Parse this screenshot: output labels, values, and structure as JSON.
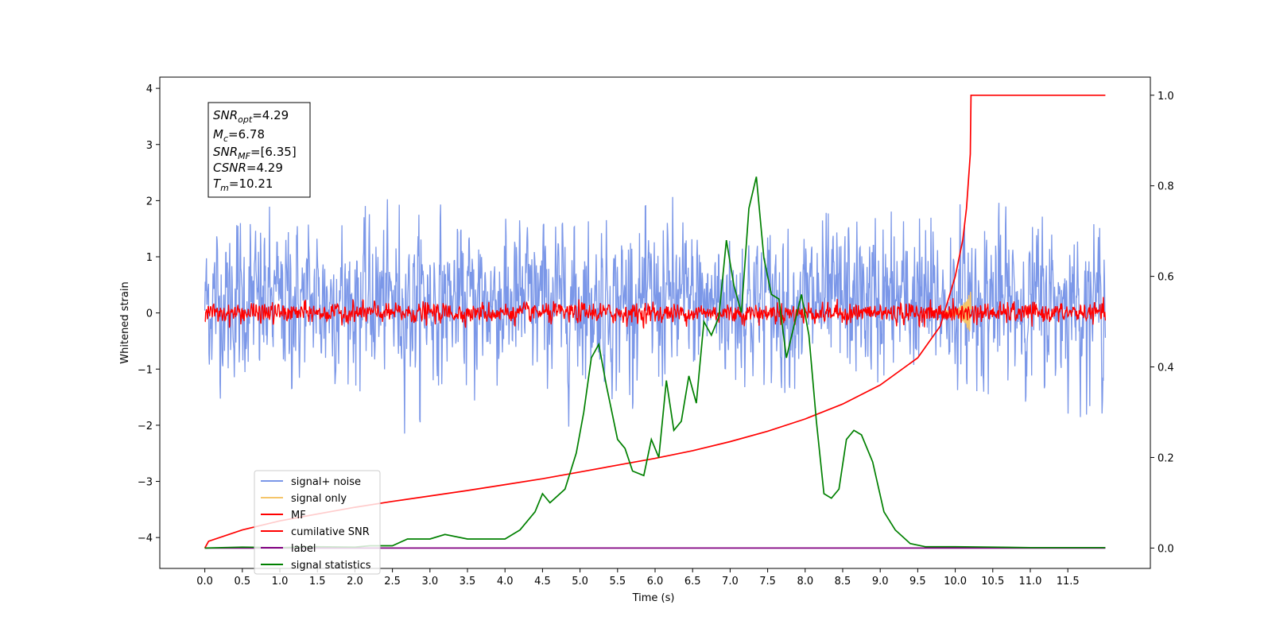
{
  "chart_data": {
    "type": "line",
    "xlabel": "Time (s)",
    "ylabel": "Whitened strain",
    "xlim": [
      -0.6,
      12.6
    ],
    "ylim": [
      -4.55,
      4.2
    ],
    "y2lim": [
      -0.045,
      1.04
    ],
    "x_ticks": [
      "0.0",
      "0.5",
      "1.0",
      "1.5",
      "2.0",
      "2.5",
      "3.0",
      "3.5",
      "4.0",
      "4.5",
      "5.0",
      "5.5",
      "6.0",
      "6.5",
      "7.0",
      "7.5",
      "8.0",
      "8.5",
      "9.0",
      "9.5",
      "10.0",
      "10.5",
      "11.0",
      "11.5"
    ],
    "y_ticks": [
      "4",
      "3",
      "2",
      "1",
      "0",
      "−1",
      "−2",
      "−3",
      "−4"
    ],
    "y2_ticks": [
      "1.0",
      "0.8",
      "0.6",
      "0.4",
      "0.2",
      "0.0"
    ],
    "stats": {
      "snr_opt": {
        "main": "SNR",
        "sub": "opt",
        "value": "=4.29"
      },
      "mc": {
        "main": "M",
        "sub": "c",
        "value": "=6.78"
      },
      "snr_mf": {
        "main": "SNR",
        "sub": "MF",
        "value": "=[6.35]"
      },
      "csnr": {
        "main": "CSNR",
        "sub": "",
        "value": "=4.29"
      },
      "tm": {
        "main": "T",
        "sub": "m",
        "value": "=10.21"
      }
    },
    "series": [
      {
        "name": "signal+ noise",
        "color": "#7b97e8",
        "axis": "left",
        "kind": "noise",
        "mean": 0.2,
        "std": 0.92,
        "x_range": [
          0.0,
          12.0
        ]
      },
      {
        "name": "signal only",
        "color": "#f5c56a",
        "axis": "left",
        "kind": "chirp",
        "merger_time": 10.21
      },
      {
        "name": "MF",
        "color": "#ff0000",
        "axis": "left",
        "kind": "noise",
        "mean": 0.0,
        "std": 0.12,
        "x_range": [
          0.0,
          12.0
        ]
      },
      {
        "name": "cumilative SNR",
        "color": "#ff0000",
        "axis": "right",
        "x": [
          0.0,
          0.05,
          0.5,
          1.0,
          1.5,
          2.0,
          2.5,
          3.0,
          3.5,
          4.0,
          4.5,
          5.0,
          5.5,
          6.0,
          6.5,
          7.0,
          7.5,
          8.0,
          8.5,
          9.0,
          9.5,
          9.8,
          10.0,
          10.1,
          10.15,
          10.2,
          10.21,
          11.0,
          11.5,
          12.0
        ],
        "y": [
          0.0,
          0.015,
          0.04,
          0.06,
          0.075,
          0.09,
          0.103,
          0.115,
          0.127,
          0.14,
          0.153,
          0.168,
          0.183,
          0.198,
          0.215,
          0.235,
          0.258,
          0.285,
          0.318,
          0.36,
          0.42,
          0.49,
          0.6,
          0.68,
          0.75,
          0.87,
          1.0,
          1.0,
          1.0,
          1.0
        ]
      },
      {
        "name": "label",
        "color": "#800080",
        "axis": "right",
        "x": [
          0.0,
          12.0
        ],
        "y": [
          0.0,
          0.0
        ]
      },
      {
        "name": "signal statistics",
        "color": "#008000",
        "axis": "right",
        "x": [
          0.0,
          0.5,
          1.0,
          1.5,
          2.0,
          2.2,
          2.5,
          2.7,
          3.0,
          3.2,
          3.5,
          3.7,
          4.0,
          4.2,
          4.4,
          4.5,
          4.6,
          4.8,
          4.95,
          5.05,
          5.15,
          5.25,
          5.35,
          5.5,
          5.6,
          5.7,
          5.85,
          5.95,
          6.05,
          6.15,
          6.25,
          6.35,
          6.45,
          6.55,
          6.65,
          6.75,
          6.85,
          6.95,
          7.05,
          7.15,
          7.25,
          7.35,
          7.45,
          7.55,
          7.65,
          7.75,
          7.85,
          7.95,
          8.05,
          8.15,
          8.25,
          8.35,
          8.45,
          8.55,
          8.65,
          8.75,
          8.9,
          9.05,
          9.2,
          9.4,
          9.6,
          10.0,
          10.5,
          11.0,
          11.5,
          12.0
        ],
        "y": [
          0.0,
          0.002,
          0.001,
          0.003,
          0.002,
          0.005,
          0.005,
          0.02,
          0.02,
          0.03,
          0.02,
          0.02,
          0.02,
          0.04,
          0.08,
          0.12,
          0.1,
          0.13,
          0.21,
          0.3,
          0.42,
          0.45,
          0.36,
          0.24,
          0.22,
          0.17,
          0.16,
          0.24,
          0.2,
          0.37,
          0.26,
          0.28,
          0.38,
          0.32,
          0.5,
          0.47,
          0.51,
          0.68,
          0.58,
          0.52,
          0.75,
          0.82,
          0.64,
          0.56,
          0.55,
          0.42,
          0.49,
          0.56,
          0.47,
          0.28,
          0.12,
          0.11,
          0.13,
          0.24,
          0.26,
          0.25,
          0.19,
          0.08,
          0.04,
          0.01,
          0.003,
          0.003,
          0.002,
          0.001,
          0.001,
          0.001
        ]
      }
    ]
  }
}
